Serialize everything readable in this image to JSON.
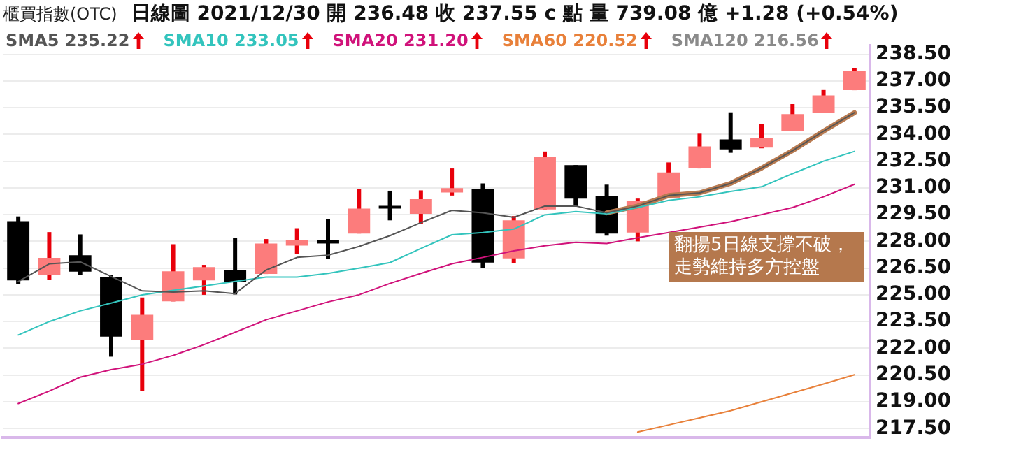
{
  "chart_data": {
    "type": "candlestick",
    "title": "櫃買指數(OTC)",
    "subtitle": "日線圖  2021/12/30  開 236.48  收 237.55 c 點  量 739.08 億  +1.28 (+0.54%)",
    "categories": [
      null,
      null,
      null,
      null,
      null,
      null,
      null,
      null,
      null,
      null,
      null,
      null,
      null,
      null,
      null,
      null,
      null,
      null,
      null,
      null,
      null,
      null,
      null,
      null,
      null,
      null,
      null,
      null
    ],
    "ohlc": [
      [
        229.13,
        229.4,
        225.6,
        225.81
      ],
      [
        226.1,
        228.52,
        225.83,
        227.07
      ],
      [
        227.22,
        228.39,
        226.1,
        226.3
      ],
      [
        226.0,
        226.12,
        221.53,
        222.65
      ],
      [
        222.45,
        224.85,
        219.62,
        223.88
      ],
      [
        224.63,
        227.84,
        224.63,
        226.32
      ],
      [
        225.81,
        226.68,
        225.0,
        226.56
      ],
      [
        226.41,
        228.2,
        225.02,
        225.71
      ],
      [
        226.17,
        228.13,
        226.17,
        227.88
      ],
      [
        227.76,
        228.74,
        227.29,
        228.08
      ],
      [
        228.08,
        229.25,
        227.03,
        227.88
      ],
      [
        228.44,
        230.94,
        228.44,
        229.84
      ],
      [
        230.0,
        230.84,
        229.18,
        229.84
      ],
      [
        229.54,
        230.86,
        228.96,
        230.37
      ],
      [
        230.74,
        232.09,
        230.57,
        230.99
      ],
      [
        230.94,
        231.25,
        226.49,
        226.81
      ],
      [
        227.05,
        229.42,
        226.76,
        229.18
      ],
      [
        229.79,
        233.04,
        229.79,
        232.72
      ],
      [
        232.28,
        232.28,
        229.98,
        230.4
      ],
      [
        230.55,
        231.18,
        228.32,
        228.44
      ],
      [
        228.5,
        230.4,
        228.0,
        230.25
      ],
      [
        230.45,
        232.43,
        230.45,
        231.87
      ],
      [
        232.09,
        234.04,
        232.09,
        233.33
      ],
      [
        233.72,
        235.24,
        232.97,
        233.16
      ],
      [
        233.26,
        234.6,
        233.22,
        233.8
      ],
      [
        234.21,
        235.7,
        234.21,
        235.14
      ],
      [
        235.21,
        236.49,
        235.21,
        236.19
      ],
      [
        236.48,
        237.73,
        236.48,
        237.55
      ]
    ],
    "series": [
      {
        "type": "line",
        "name": "SMA5 235.22",
        "color": "#555555",
        "values": [
          225.75,
          226.74,
          226.85,
          226.03,
          225.22,
          225.15,
          225.22,
          225.07,
          226.39,
          227.1,
          227.22,
          227.71,
          228.32,
          229.05,
          229.74,
          229.6,
          229.35,
          229.98,
          229.98,
          229.6,
          229.98,
          230.57,
          230.72,
          231.25,
          232.11,
          233.09,
          234.18,
          235.22
        ]
      },
      {
        "type": "line",
        "name": "SMA10 233.05",
        "color": "#33c4bd",
        "values": [
          222.75,
          223.5,
          224.1,
          224.54,
          225.0,
          225.25,
          225.5,
          225.75,
          226.0,
          226.0,
          226.2,
          226.5,
          226.81,
          227.6,
          228.37,
          228.5,
          228.69,
          229.49,
          229.67,
          229.54,
          229.9,
          230.3,
          230.5,
          230.8,
          231.06,
          231.8,
          232.5,
          233.05
        ]
      },
      {
        "type": "line",
        "name": "SMA20 231.20",
        "color": "#d0127a",
        "values": [
          218.9,
          219.6,
          220.38,
          220.8,
          221.11,
          221.6,
          222.21,
          222.9,
          223.6,
          224.1,
          224.6,
          225.0,
          225.64,
          226.2,
          226.74,
          227.1,
          227.47,
          227.75,
          227.95,
          227.88,
          228.2,
          228.5,
          228.8,
          229.1,
          229.5,
          229.9,
          230.5,
          231.2
        ]
      },
      {
        "type": "line",
        "name": "SMA60 220.52",
        "color": "#e8803a",
        "values": [
          null,
          null,
          null,
          null,
          null,
          null,
          null,
          null,
          null,
          null,
          null,
          null,
          null,
          null,
          null,
          null,
          null,
          null,
          null,
          null,
          217.3,
          217.7,
          218.1,
          218.5,
          219.0,
          219.5,
          220.0,
          220.52
        ]
      },
      {
        "type": "line",
        "color": "#b87a50",
        "values": [
          null,
          null,
          null,
          null,
          null,
          null,
          null,
          null,
          null,
          null,
          null,
          null,
          null,
          null,
          null,
          null,
          null,
          null,
          null,
          229.6,
          229.98,
          230.57,
          230.72,
          231.25,
          232.11,
          233.09,
          234.18,
          235.22
        ]
      }
    ],
    "ylim": [
      217,
      239
    ],
    "yticks": [
      {
        "value": 217.5,
        "label": "217.50"
      },
      {
        "value": 219,
        "label": "219.00"
      },
      {
        "value": 220.5,
        "label": "220.50"
      },
      {
        "value": 222,
        "label": "222.00"
      },
      {
        "value": 223.5,
        "label": "223.50"
      },
      {
        "value": 225,
        "label": "225.00"
      },
      {
        "value": 226.5,
        "label": "226.50"
      },
      {
        "value": 228,
        "label": "228.00"
      },
      {
        "value": 229.5,
        "label": "229.50"
      },
      {
        "value": 231,
        "label": "231.00"
      },
      {
        "value": 232.5,
        "label": "232.50"
      },
      {
        "value": 234,
        "label": "234.00"
      },
      {
        "value": 235.5,
        "label": "235.50"
      },
      {
        "value": 237,
        "label": "237.00"
      },
      {
        "value": 238.5,
        "label": "238.50"
      }
    ],
    "tick_labels": "y",
    "grid": "y",
    "legend": "top",
    "marker": "none",
    "line_style": "solid",
    "annotations": [
      "SMA120 216.56",
      "翻揚5日線支撐不破，走勢維持多方控盤"
    ]
  }
}
